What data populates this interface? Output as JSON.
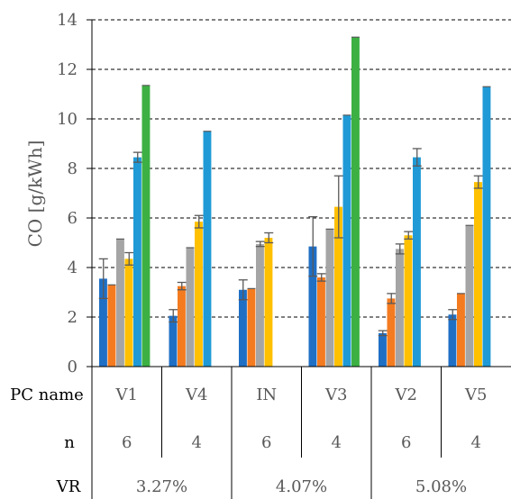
{
  "chart_data": {
    "type": "bar",
    "ylabel": "CO [g/kWh]",
    "ylim": [
      0,
      14
    ],
    "yticks": [
      0,
      2,
      4,
      6,
      8,
      10,
      12,
      14
    ],
    "grid": "horizontal dashed",
    "categories": [
      "V1",
      "V4",
      "IN",
      "V3",
      "V2",
      "V5"
    ],
    "series_colors": [
      "#1f6fc5",
      "#f47b20",
      "#a5a5a5",
      "#ffc000",
      "#1f9ad6",
      "#3cb043"
    ],
    "groups": [
      {
        "bars": [
          {
            "value": 3.55,
            "err": 0.8
          },
          {
            "value": 3.3,
            "err": 0
          },
          {
            "value": 5.15,
            "err": 0
          },
          {
            "value": 4.35,
            "err": 0.25
          },
          {
            "value": 8.45,
            "err": 0.2
          },
          {
            "value": 11.35,
            "err": 0
          }
        ]
      },
      {
        "bars": [
          {
            "value": 2.05,
            "err": 0.25
          },
          {
            "value": 3.25,
            "err": 0.15
          },
          {
            "value": 4.8,
            "err": 0
          },
          {
            "value": 5.85,
            "err": 0.25
          },
          {
            "value": 9.5,
            "err": 0
          }
        ]
      },
      {
        "bars": [
          {
            "value": 3.1,
            "err": 0.4
          },
          {
            "value": 3.15,
            "err": 0
          },
          {
            "value": 4.95,
            "err": 0.1
          },
          {
            "value": 5.2,
            "err": 0.2
          }
        ]
      },
      {
        "bars": [
          {
            "value": 4.85,
            "err": 1.2
          },
          {
            "value": 3.6,
            "err": 0.15
          },
          {
            "value": 5.55,
            "err": 0
          },
          {
            "value": 6.45,
            "err": 1.25
          },
          {
            "value": 10.15,
            "err": 0
          },
          {
            "value": 13.3,
            "err": 0
          }
        ]
      },
      {
        "bars": [
          {
            "value": 1.35,
            "err": 0.1
          },
          {
            "value": 2.75,
            "err": 0.2
          },
          {
            "value": 4.75,
            "err": 0.2
          },
          {
            "value": 5.3,
            "err": 0.15
          },
          {
            "value": 8.45,
            "err": 0.35
          }
        ]
      },
      {
        "bars": [
          {
            "value": 2.1,
            "err": 0.2
          },
          {
            "value": 2.95,
            "err": 0
          },
          {
            "value": 5.7,
            "err": 0
          },
          {
            "value": 7.45,
            "err": 0.25
          },
          {
            "value": 11.3,
            "err": 0
          }
        ]
      }
    ],
    "table": {
      "row_labels": [
        "PC name",
        "n",
        "VR"
      ],
      "pc_names": [
        "V1",
        "V4",
        "IN",
        "V3",
        "V2",
        "V5"
      ],
      "n": [
        "6",
        "4",
        "6",
        "4",
        "6",
        "4"
      ],
      "vr": [
        "3.27%",
        "4.07%",
        "5.08%"
      ]
    }
  }
}
